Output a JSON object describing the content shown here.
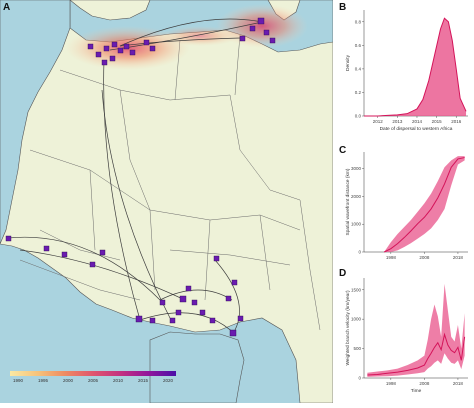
{
  "panels": {
    "a": "A",
    "b": "B",
    "c": "C",
    "d": "D"
  },
  "colorbar": {
    "ticks": [
      "1990",
      "1995",
      "2000",
      "2005",
      "2010",
      "2015",
      "2020"
    ],
    "colors": [
      "#fbe9a3",
      "#f6c27a",
      "#ee8b62",
      "#e0556e",
      "#c23081",
      "#93169b",
      "#4b0fa8"
    ]
  },
  "colors": {
    "land": "#eef2d8",
    "sea": "#aad3df",
    "accent": "#d4145a",
    "fill": "#e8538a",
    "node": "#6a1bb0"
  },
  "chart_data": [
    {
      "type": "area",
      "panel": "B",
      "xlabel": "Date of dispersal to western Africa",
      "ylabel": "Density",
      "xticks": [
        "2012",
        "2013",
        "2014",
        "2015",
        "2016"
      ],
      "yticks": [
        "0.0",
        "0.2",
        "0.4",
        "0.6",
        "0.8"
      ],
      "xlim": [
        2011.3,
        2016.6
      ],
      "ylim": [
        0,
        0.9
      ],
      "x": [
        2011.3,
        2012.0,
        2012.5,
        2013.0,
        2013.5,
        2014.0,
        2014.3,
        2014.6,
        2014.9,
        2015.2,
        2015.4,
        2015.6,
        2015.8,
        2016.0,
        2016.2,
        2016.5
      ],
      "y": [
        0.0,
        0.0,
        0.005,
        0.01,
        0.02,
        0.06,
        0.14,
        0.3,
        0.52,
        0.74,
        0.83,
        0.8,
        0.64,
        0.4,
        0.15,
        0.04
      ]
    },
    {
      "type": "line",
      "panel": "C",
      "ylabel": "Spatial wavefront distance (km)",
      "xticks": [
        "1998",
        "2008",
        "2018"
      ],
      "yticks": [
        "0",
        "1000",
        "2000",
        "3000"
      ],
      "xlim": [
        1990,
        2021
      ],
      "ylim": [
        0,
        3600
      ],
      "x": [
        1996,
        1998,
        2000,
        2002,
        2004,
        2006,
        2008,
        2010,
        2012,
        2014,
        2016,
        2018,
        2020
      ],
      "median": [
        0,
        120,
        300,
        520,
        760,
        1020,
        1250,
        1550,
        1950,
        2450,
        3050,
        3350,
        3400
      ],
      "lower": [
        0,
        0,
        60,
        180,
        320,
        480,
        650,
        850,
        1150,
        1550,
        2400,
        3150,
        3300
      ],
      "upper": [
        0,
        350,
        650,
        900,
        1150,
        1450,
        1750,
        2100,
        2550,
        3050,
        3300,
        3450,
        3450
      ]
    },
    {
      "type": "line",
      "panel": "D",
      "xlabel": "Time",
      "ylabel": "Weighted branch velocity (km/year)",
      "xticks": [
        "1998",
        "2008",
        "2018"
      ],
      "yticks": [
        "0",
        "500",
        "1000",
        "1500"
      ],
      "xlim": [
        1990,
        2021
      ],
      "ylim": [
        0,
        1700
      ],
      "x": [
        1991,
        1994,
        1997,
        2000,
        2003,
        2006,
        2008,
        2009,
        2010,
        2011,
        2012,
        2013,
        2014,
        2015,
        2016,
        2017,
        2018,
        2019,
        2020
      ],
      "median": [
        50,
        60,
        80,
        100,
        130,
        170,
        220,
        330,
        420,
        520,
        600,
        480,
        740,
        560,
        470,
        430,
        520,
        300,
        700
      ],
      "lower": [
        20,
        25,
        30,
        40,
        60,
        80,
        100,
        160,
        200,
        260,
        300,
        240,
        420,
        330,
        260,
        240,
        300,
        150,
        380
      ],
      "upper": [
        90,
        110,
        130,
        160,
        220,
        300,
        380,
        650,
        1000,
        1250,
        1050,
        700,
        1600,
        1150,
        700,
        620,
        900,
        500,
        1100
      ]
    }
  ]
}
